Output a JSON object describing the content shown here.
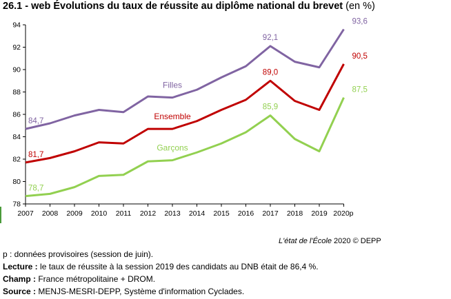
{
  "header": {
    "title": "26.1 - web Évolutions du taux de réussite au diplôme national du brevet",
    "unit": "(en %)"
  },
  "credit": {
    "source_italic": "L'état de l'École",
    "year": "2020",
    "copyright": "© DEPP"
  },
  "notes": {
    "provisional": "p : données provisoires (session de juin).",
    "lecture_label": "Lecture :",
    "lecture_text": " le taux de réussite à la session 2019 des candidats au DNB était de 86,4 %.",
    "champ_label": "Champ :",
    "champ_text": " France métropolitaine + DROM.",
    "source_label": "Source :",
    "source_text": " MENJS-MESRI-DEPP, Système d'information Cyclades."
  },
  "chart_data": {
    "type": "line",
    "categories": [
      "2007",
      "2008",
      "2009",
      "2010",
      "2011",
      "2012",
      "2013",
      "2014",
      "2015",
      "2016",
      "2017",
      "2018",
      "2019",
      "2020p"
    ],
    "ylim": [
      78,
      94
    ],
    "yticks": [
      78,
      80,
      82,
      84,
      86,
      88,
      90,
      92,
      94
    ],
    "ytick_labels": [
      "78",
      "80",
      "82",
      "84",
      "86",
      "88",
      "90",
      "92",
      "94"
    ],
    "grid": false,
    "series": [
      {
        "name": "Filles",
        "color": "#8064a2",
        "values": [
          84.7,
          85.2,
          85.9,
          86.4,
          86.2,
          87.6,
          87.5,
          88.2,
          89.3,
          90.3,
          92.1,
          90.7,
          90.2,
          93.6
        ],
        "labels": [
          {
            "index": 0,
            "text": "84,7"
          },
          {
            "index": 10,
            "text": "92,1"
          },
          {
            "index": 13,
            "text": "93,6"
          }
        ]
      },
      {
        "name": "Ensemble",
        "color": "#c00000",
        "values": [
          81.7,
          82.1,
          82.7,
          83.5,
          83.4,
          84.7,
          84.7,
          85.4,
          86.4,
          87.3,
          89.0,
          87.2,
          86.4,
          90.5
        ],
        "labels": [
          {
            "index": 0,
            "text": "81,7"
          },
          {
            "index": 10,
            "text": "89,0"
          },
          {
            "index": 13,
            "text": "90,5"
          }
        ]
      },
      {
        "name": "Garçons",
        "color": "#92d050",
        "values": [
          78.7,
          78.9,
          79.5,
          80.5,
          80.6,
          81.8,
          81.9,
          82.6,
          83.4,
          84.4,
          85.9,
          83.8,
          82.7,
          87.5
        ],
        "labels": [
          {
            "index": 0,
            "text": "78,7"
          },
          {
            "index": 10,
            "text": "85,9"
          },
          {
            "index": 13,
            "text": "87,5"
          }
        ]
      }
    ]
  }
}
